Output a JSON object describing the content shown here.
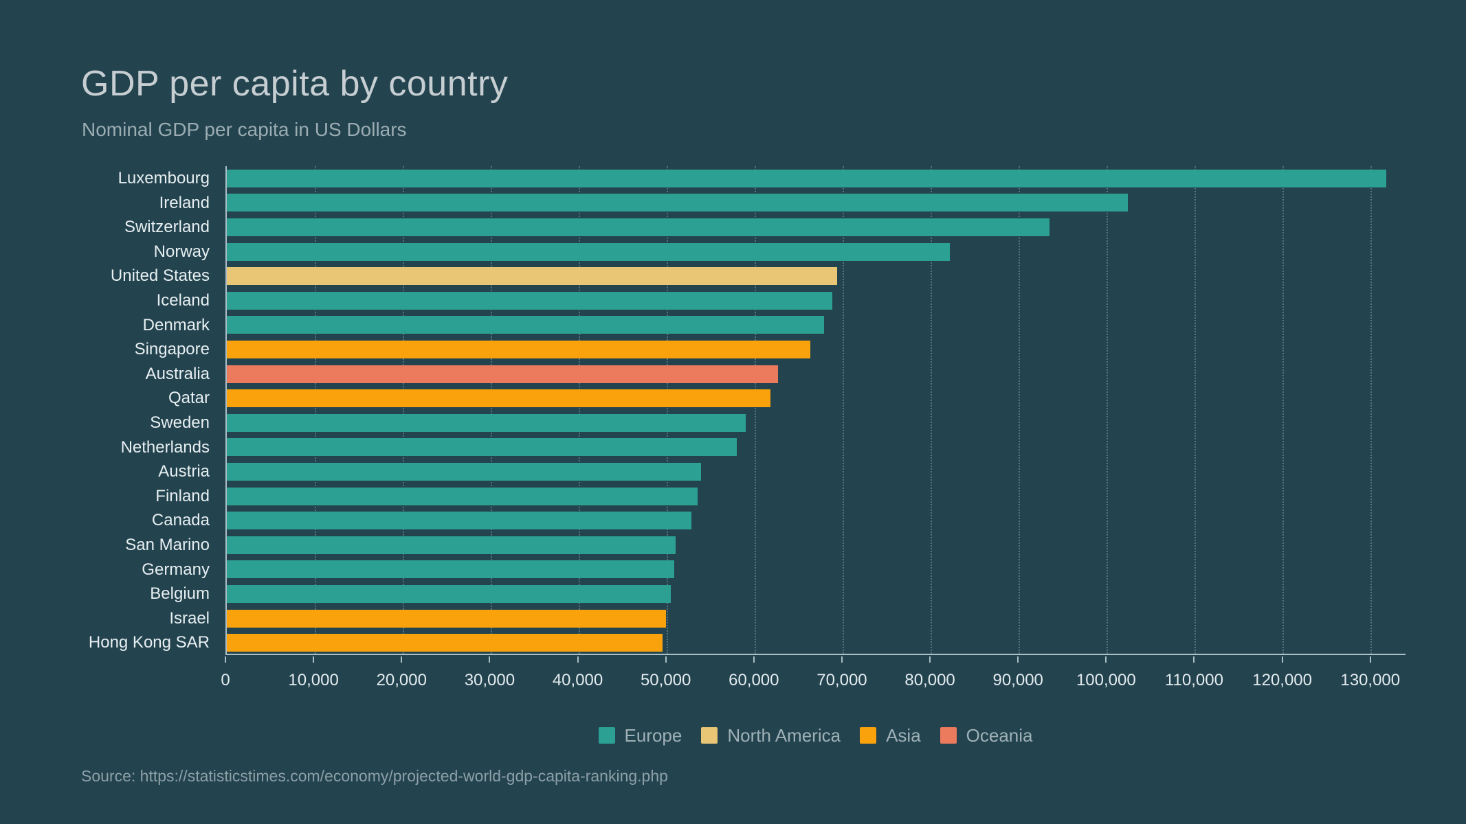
{
  "header": {
    "title": "GDP per capita by country",
    "subtitle": "Nominal GDP per capita in US Dollars"
  },
  "footer": {
    "source": "Source: https://statisticstimes.com/economy/projected-world-gdp-capita-ranking.php"
  },
  "colors": {
    "background": "#23434f",
    "teal": "#2ba093",
    "yellow": "#e8c675",
    "orange": "#f9a20c",
    "salmon": "#ec7a5c",
    "axis_line": "#aabfc6",
    "gridline": "rgba(173,195,202,0.38)",
    "title_text": "#c6ced1",
    "subtitle_text": "#9badb3",
    "label_text": "#e7eff1",
    "legend_text": "#9fb1b6",
    "source_text": "#8da0a7"
  },
  "legend": {
    "position": "bottom-center",
    "items": [
      {
        "label": "Europe",
        "color_key": "teal"
      },
      {
        "label": "North America",
        "color_key": "yellow"
      },
      {
        "label": "Asia",
        "color_key": "orange"
      },
      {
        "label": "Oceania",
        "color_key": "salmon"
      }
    ]
  },
  "chart_data": {
    "type": "bar",
    "orientation": "horizontal",
    "title": "GDP per capita by country",
    "subtitle": "Nominal GDP per capita in US Dollars",
    "xlabel": "",
    "ylabel": "",
    "grid": "vertical-dotted",
    "axis": {
      "min": 0,
      "max": 134000,
      "tick_interval": 10000,
      "ticks": [
        0,
        10000,
        20000,
        30000,
        40000,
        50000,
        60000,
        70000,
        80000,
        90000,
        100000,
        110000,
        120000,
        130000
      ],
      "tick_labels": [
        "0",
        "10,000",
        "20,000",
        "30,000",
        "40,000",
        "50,000",
        "60,000",
        "70,000",
        "80,000",
        "90,000",
        "100,000",
        "110,000",
        "120,000",
        "130,000"
      ]
    },
    "bars": [
      {
        "country": "Luxembourg",
        "value": 131800,
        "color_key": "teal"
      },
      {
        "country": "Ireland",
        "value": 102400,
        "color_key": "teal"
      },
      {
        "country": "Switzerland",
        "value": 93500,
        "color_key": "teal"
      },
      {
        "country": "Norway",
        "value": 82200,
        "color_key": "teal"
      },
      {
        "country": "United States",
        "value": 69400,
        "color_key": "yellow"
      },
      {
        "country": "Iceland",
        "value": 68800,
        "color_key": "teal"
      },
      {
        "country": "Denmark",
        "value": 67900,
        "color_key": "teal"
      },
      {
        "country": "Singapore",
        "value": 66300,
        "color_key": "orange"
      },
      {
        "country": "Australia",
        "value": 62700,
        "color_key": "salmon"
      },
      {
        "country": "Qatar",
        "value": 61800,
        "color_key": "orange"
      },
      {
        "country": "Sweden",
        "value": 59000,
        "color_key": "teal"
      },
      {
        "country": "Netherlands",
        "value": 58000,
        "color_key": "teal"
      },
      {
        "country": "Austria",
        "value": 53900,
        "color_key": "teal"
      },
      {
        "country": "Finland",
        "value": 53500,
        "color_key": "teal"
      },
      {
        "country": "Canada",
        "value": 52800,
        "color_key": "teal"
      },
      {
        "country": "San Marino",
        "value": 51000,
        "color_key": "teal"
      },
      {
        "country": "Germany",
        "value": 50900,
        "color_key": "teal"
      },
      {
        "country": "Belgium",
        "value": 50500,
        "color_key": "teal"
      },
      {
        "country": "Israel",
        "value": 49900,
        "color_key": "orange"
      },
      {
        "country": "Hong Kong SAR",
        "value": 49500,
        "color_key": "orange"
      }
    ]
  }
}
